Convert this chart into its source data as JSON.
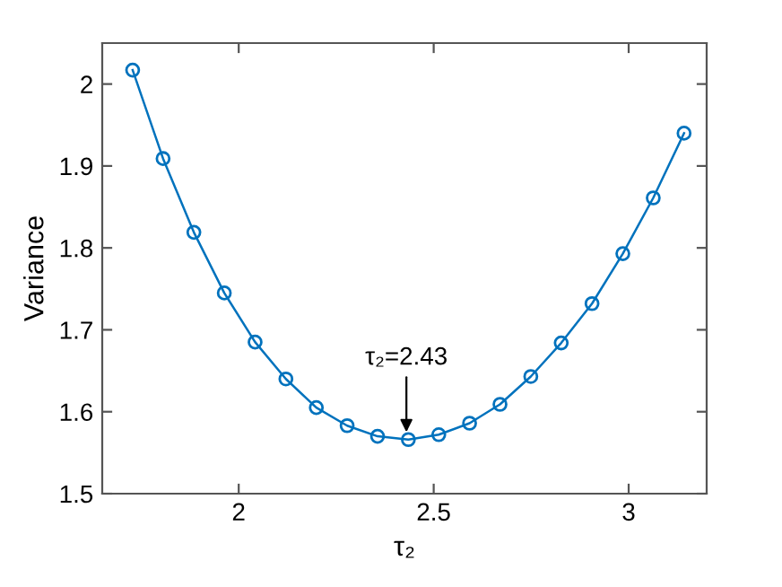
{
  "chart_data": {
    "type": "line",
    "xlabel": "τ₂",
    "ylabel": "Variance",
    "x": [
      1.728,
      1.806,
      1.885,
      1.963,
      2.042,
      2.121,
      2.199,
      2.278,
      2.356,
      2.435,
      2.513,
      2.592,
      2.67,
      2.749,
      2.827,
      2.906,
      2.985,
      3.063,
      3.142
    ],
    "series": [
      {
        "color": "#0072bd",
        "values": [
          2.017,
          1.909,
          1.819,
          1.745,
          1.685,
          1.64,
          1.605,
          1.583,
          1.57,
          1.566,
          1.572,
          1.586,
          1.609,
          1.643,
          1.684,
          1.732,
          1.793,
          1.861,
          1.94
        ]
      }
    ],
    "marker": "circle",
    "line_style": "solid",
    "xlim": [
      1.65,
      3.2
    ],
    "ylim": [
      1.5,
      2.05
    ],
    "xticks": [
      2,
      2.5,
      3
    ],
    "yticks": [
      1.5,
      1.6,
      1.7,
      1.8,
      1.9,
      2
    ],
    "annotations": [
      {
        "text": "τ₂=2.43",
        "x": 2.43,
        "y": 1.566
      }
    ]
  }
}
